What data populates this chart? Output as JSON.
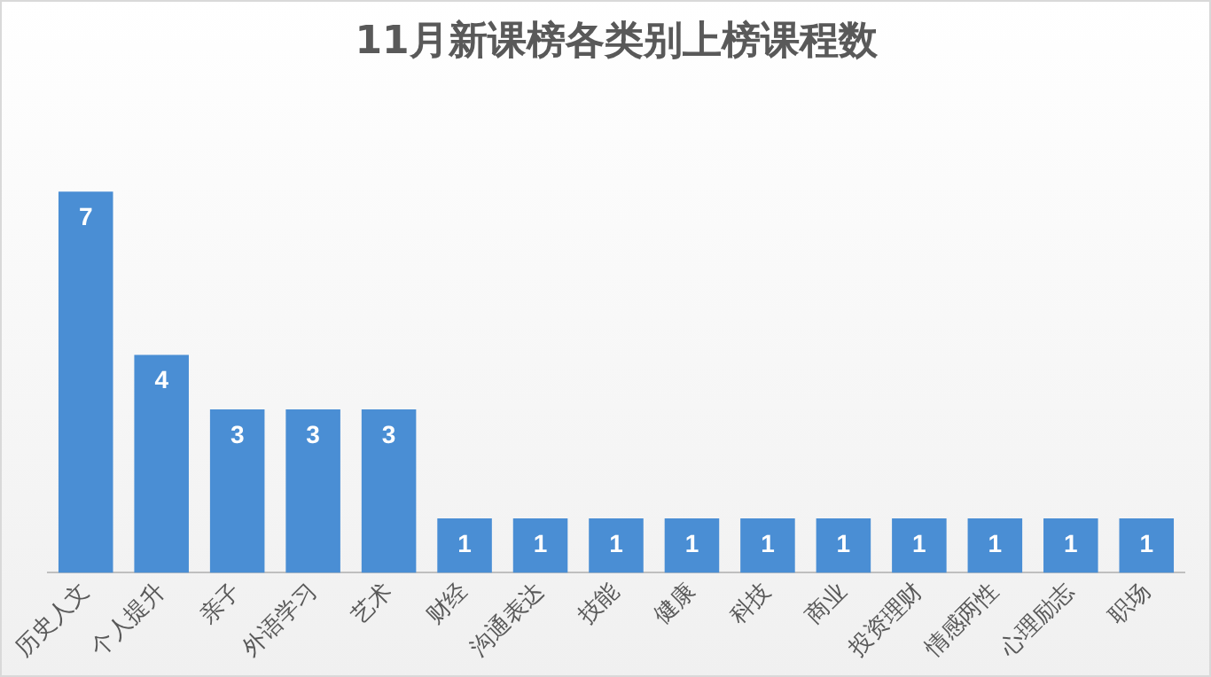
{
  "chart_data": {
    "type": "bar",
    "title": "11月新课榜各类别上榜课程数",
    "categories": [
      "历史人文",
      "个人提升",
      "亲子",
      "外语学习",
      "艺术",
      "财经",
      "沟通表达",
      "技能",
      "健康",
      "科技",
      "商业",
      "投资理财",
      "情感两性",
      "心理励志",
      "职场"
    ],
    "values": [
      7,
      4,
      3,
      3,
      3,
      1,
      1,
      1,
      1,
      1,
      1,
      1,
      1,
      1,
      1
    ],
    "color": "#4a8ed4",
    "data_labels": true,
    "grid": false,
    "legend": false
  }
}
